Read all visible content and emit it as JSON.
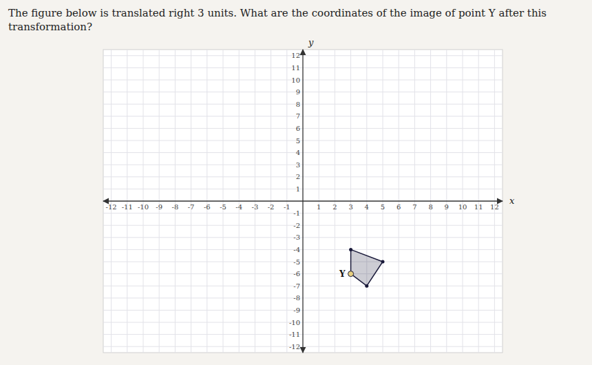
{
  "chart_data": {
    "type": "polygon",
    "title": "The figure below is translated right 3 units. What are the coordinates of the image of point Y after this transformation?",
    "x_label": "x",
    "y_label": "y",
    "x": [
      3,
      5,
      4,
      3
    ],
    "values": [
      -4,
      -5,
      -7,
      -6
    ],
    "color": "#1a1a3a",
    "marker": "circle",
    "annotations": [
      {
        "text": "Y",
        "x": 3,
        "y": -6
      }
    ],
    "xlim": [
      -12.5,
      12.5
    ],
    "ylim": [
      -12.5,
      12.5
    ],
    "xticks": [
      -12,
      -11,
      -10,
      -9,
      -8,
      -7,
      -6,
      -5,
      -4,
      -3,
      -2,
      -1,
      1,
      2,
      3,
      4,
      5,
      6,
      7,
      8,
      9,
      10,
      11,
      12
    ],
    "yticks": [
      -12,
      -11,
      -10,
      -9,
      -8,
      -7,
      -6,
      -5,
      -4,
      -3,
      -2,
      -1,
      1,
      2,
      3,
      4,
      5,
      6,
      7,
      8,
      9,
      10,
      11,
      12
    ],
    "grid": true
  }
}
